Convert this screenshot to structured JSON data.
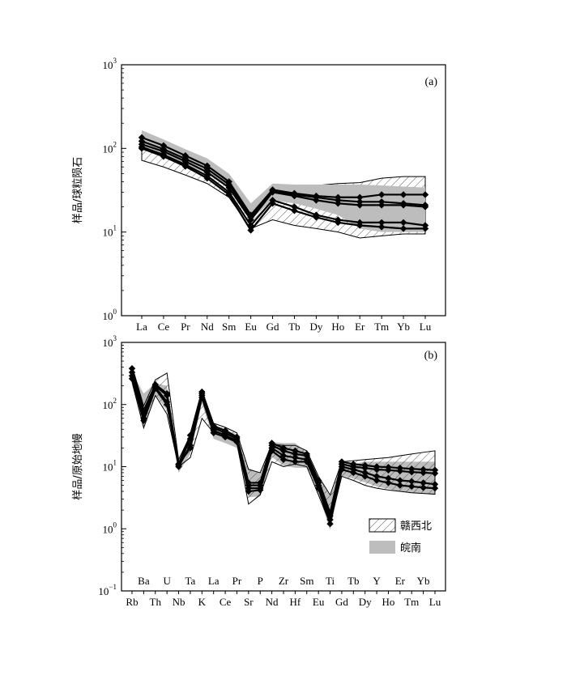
{
  "chart_data": [
    {
      "type": "line",
      "panel_label": "(a)",
      "ylabel": "样品/球粒陨石",
      "yscale": "log",
      "ylim": [
        1,
        1000
      ],
      "ytick_labels": [
        {
          "base": "10",
          "exp": "0"
        },
        {
          "base": "10",
          "exp": "1"
        },
        {
          "base": "10",
          "exp": "2"
        },
        {
          "base": "10",
          "exp": "3"
        }
      ],
      "categories": [
        "La",
        "Ce",
        "Pr",
        "Nd",
        "Sm",
        "Eu",
        "Gd",
        "Tb",
        "Dy",
        "Ho",
        "Er",
        "Tm",
        "Yb",
        "Lu"
      ],
      "legend_location": "none",
      "envelopes": [
        {
          "name": "赣西北",
          "style": "hatched",
          "upper": [
            130,
            110,
            88,
            68,
            45,
            20,
            36,
            35,
            36,
            38,
            39,
            44,
            46,
            46
          ],
          "lower": [
            72,
            60,
            48,
            38,
            26,
            11,
            14,
            12,
            11,
            10,
            8.5,
            9,
            9.5,
            9.5
          ]
        },
        {
          "name": "皖南",
          "style": "gray",
          "upper": [
            165,
            128,
            98,
            76,
            50,
            22,
            38,
            37,
            37,
            37,
            37,
            36,
            35,
            34
          ],
          "lower": [
            100,
            80,
            64,
            50,
            33,
            14,
            24,
            22,
            19,
            16,
            11,
            10,
            10,
            10
          ]
        }
      ],
      "series": [
        {
          "values": [
            135,
            108,
            82,
            62,
            40,
            16,
            32,
            29,
            27,
            26,
            26,
            28,
            28,
            28
          ]
        },
        {
          "values": [
            122,
            98,
            75,
            57,
            37,
            15,
            31,
            28,
            26,
            24,
            23,
            23,
            22,
            21
          ]
        },
        {
          "values": [
            112,
            92,
            70,
            52,
            34,
            14,
            30,
            27,
            24,
            22,
            21,
            21,
            21,
            20
          ]
        },
        {
          "values": [
            104,
            84,
            64,
            47,
            30,
            12,
            24,
            20,
            16,
            14,
            13,
            13,
            13,
            12
          ]
        },
        {
          "values": [
            100,
            80,
            61,
            44,
            28,
            10.5,
            22,
            18,
            15,
            13,
            12,
            11.5,
            11,
            11
          ]
        }
      ]
    },
    {
      "type": "line",
      "panel_label": "(b)",
      "ylabel": "样品/原始地幔",
      "yscale": "log",
      "ylim": [
        0.1,
        1000
      ],
      "ytick_labels": [
        {
          "base": "10",
          "exp": "−1"
        },
        {
          "base": "10",
          "exp": "0"
        },
        {
          "base": "10",
          "exp": "1"
        },
        {
          "base": "10",
          "exp": "2"
        },
        {
          "base": "10",
          "exp": "3"
        }
      ],
      "categories": [
        "Rb",
        "Ba",
        "Th",
        "U",
        "Nb",
        "Ta",
        "K",
        "La",
        "Ce",
        "Pr",
        "Sr",
        "P",
        "Nd",
        "Zr",
        "Hf",
        "Sm",
        "Eu",
        "Ti",
        "Gd",
        "Tb",
        "Dy",
        "Y",
        "Ho",
        "Er",
        "Tm",
        "Yb",
        "Lu"
      ],
      "legend_location": "lower right",
      "envelopes": [
        {
          "name": "赣西北",
          "style": "hatched",
          "upper": [
            420,
            95,
            250,
            320,
            13,
            32,
            170,
            50,
            43,
            35,
            9,
            8,
            23,
            22,
            22,
            18,
            7,
            3.5,
            12,
            12.5,
            13,
            13.5,
            14,
            15,
            16,
            17,
            18
          ],
          "lower": [
            230,
            42,
            140,
            70,
            10,
            14,
            60,
            35,
            30,
            24,
            2.5,
            3.5,
            12,
            10,
            11,
            10,
            3.5,
            1.2,
            7,
            6,
            5,
            4.5,
            4.2,
            4,
            3.8,
            3.7,
            3.6
          ]
        },
        {
          "name": "皖南",
          "style": "gray",
          "upper": [
            330,
            150,
            220,
            200,
            12,
            35,
            165,
            48,
            40,
            33,
            9.5,
            8,
            25,
            24,
            24,
            17,
            7,
            3.3,
            11,
            11,
            12,
            12,
            12,
            12,
            12,
            12,
            12
          ]
        }
      ],
      "series": [
        {
          "values": [
            380,
            80,
            210,
            150,
            11,
            32,
            160,
            45,
            38,
            30,
            5.5,
            5.5,
            24,
            20,
            18,
            16,
            6,
            1.8,
            12,
            11,
            10.5,
            10,
            9.8,
            9.5,
            9.2,
            9,
            8.8
          ]
        },
        {
          "values": [
            330,
            70,
            200,
            140,
            10.5,
            28,
            150,
            42,
            35,
            28,
            5,
            5,
            22,
            18,
            16,
            15,
            5.5,
            1.6,
            11,
            10,
            9.5,
            9,
            8.8,
            8.5,
            8.2,
            8,
            7.8
          ]
        },
        {
          "values": [
            290,
            60,
            190,
            110,
            10,
            22,
            140,
            38,
            32,
            26,
            4.5,
            4.5,
            20,
            15,
            14,
            13,
            5,
            1.4,
            10,
            9,
            8,
            7,
            6.5,
            6,
            5.8,
            5.5,
            5.2
          ]
        },
        {
          "values": [
            260,
            55,
            180,
            100,
            11,
            20,
            130,
            35,
            30,
            25,
            4,
            4.2,
            18,
            13,
            12,
            12,
            4.5,
            1.2,
            9,
            8,
            7,
            6,
            5.5,
            5,
            4.8,
            4.6,
            4.5
          ]
        }
      ]
    }
  ],
  "legend": {
    "items": [
      {
        "label": "赣西北",
        "style": "hatched"
      },
      {
        "label": "皖南",
        "style": "gray"
      }
    ]
  },
  "colors": {
    "line": "#000000",
    "gray_envelope": "#bdbdbd",
    "hatch": "#333333"
  }
}
